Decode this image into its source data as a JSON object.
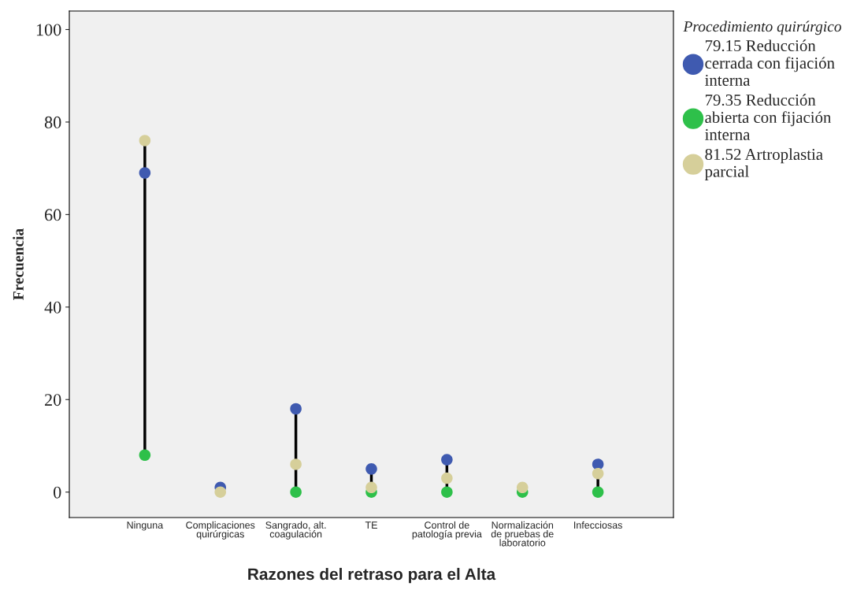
{
  "chart_data": {
    "type": "scatter",
    "xlabel": "Razones del retraso para el Alta",
    "ylabel": "Frecuencia",
    "legend_title": "Procedimiento quirúrgico",
    "categories": [
      "Ninguna",
      "Complicaciones\nquirúrgicas",
      "Sangrado, alt.\ncoagulación",
      "TE",
      "Control de\npatología previa",
      "Normalización\nde pruebas de\nlaboratorio",
      "Infecciosas"
    ],
    "series": [
      {
        "name": "79.15 Reducción\ncerrada con fijación\ninterna",
        "color": "#3f5ab0",
        "values": [
          69,
          1,
          18,
          5,
          7,
          null,
          6
        ]
      },
      {
        "name": "79.35 Reducción\nabierta con fijación\ninterna",
        "color": "#2ec04a",
        "values": [
          8,
          null,
          0,
          0,
          0,
          0,
          0
        ]
      },
      {
        "name": "81.52 Artroplastia\nparcial",
        "color": "#d6cf9a",
        "values": [
          76,
          0,
          6,
          1,
          3,
          1,
          4
        ]
      }
    ],
    "ylim": [
      -5.5,
      104
    ],
    "yticks": [
      0,
      20,
      40,
      60,
      80,
      100
    ],
    "grid": false,
    "legend": "right",
    "marker": "circle"
  }
}
